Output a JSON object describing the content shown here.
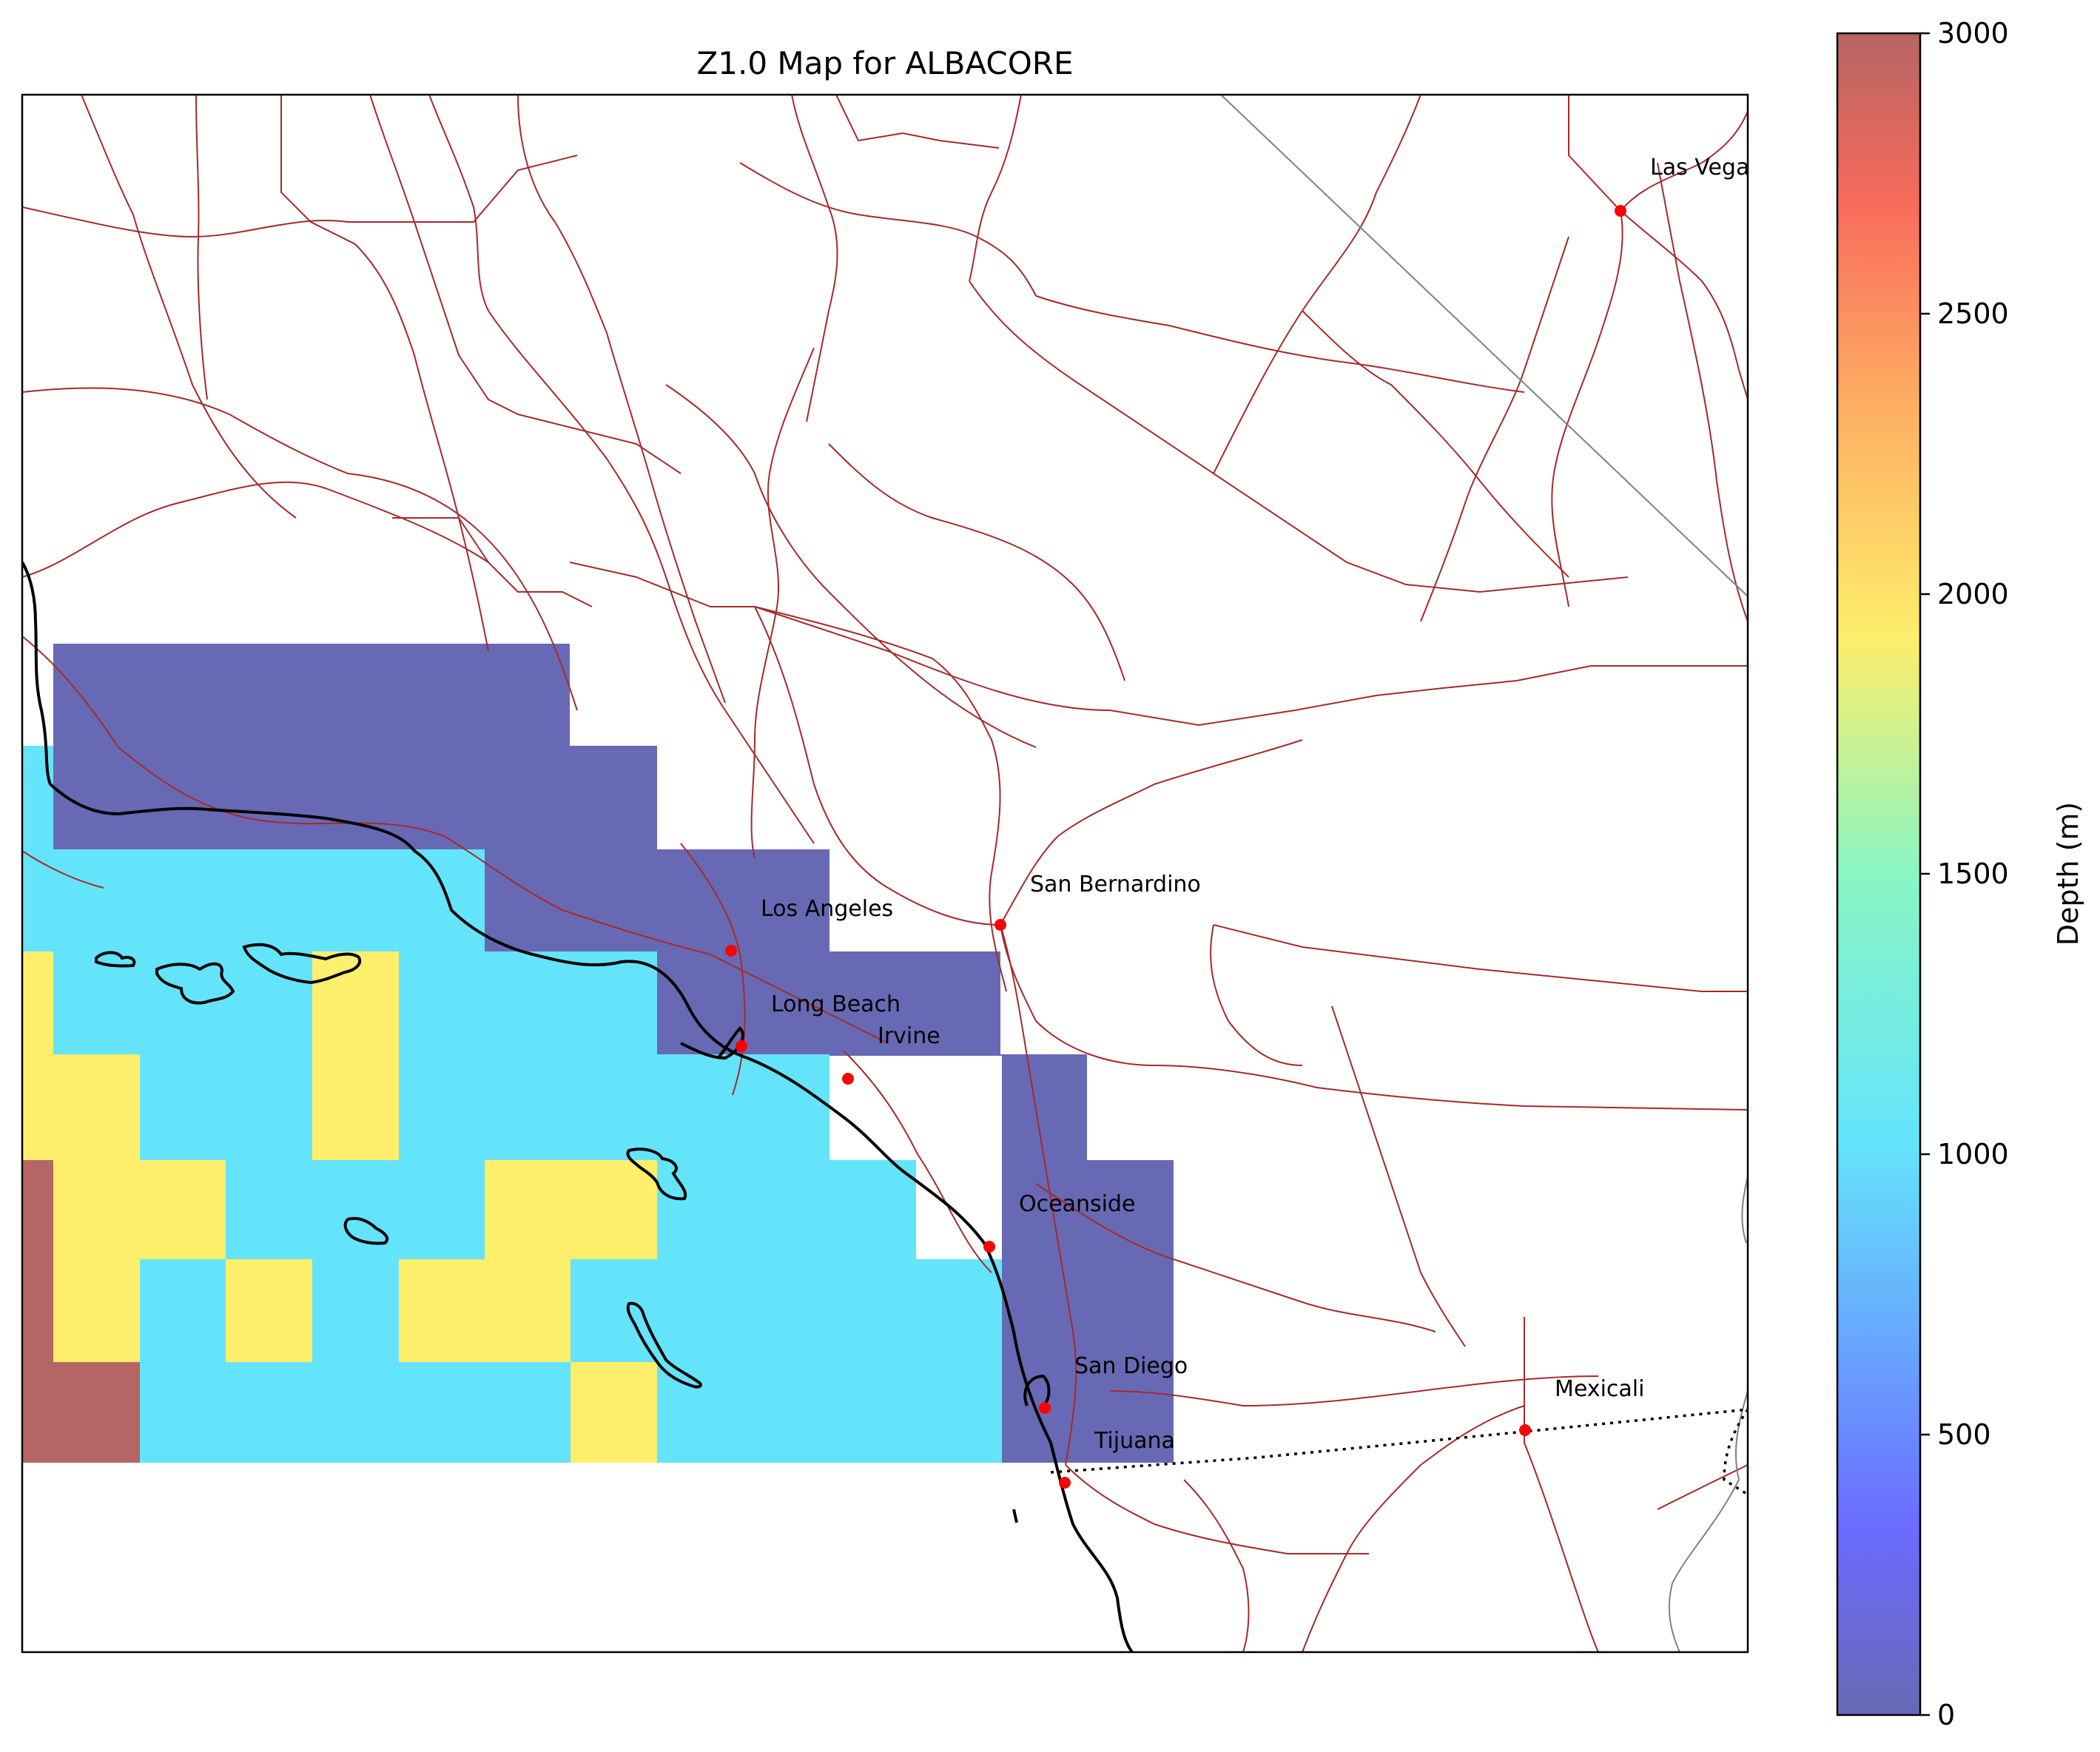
{
  "title": "Z1.0 Map for ALBACORE",
  "colors": {
    "depth_0_500": "#6869b4",
    "depth_1000": "#64e4fb",
    "depth_2000": "#fdee6b",
    "depth_3000": "#b56563",
    "road": "#a52a2a",
    "city_marker": "#ff0000"
  },
  "colorbar": {
    "label": "Depth (m)",
    "ticks": [
      "0",
      "500",
      "1000",
      "1500",
      "2000",
      "2500",
      "3000"
    ],
    "min": 0,
    "max": 3000,
    "colormap": "jet"
  },
  "cities": [
    {
      "name": "Las Vegas"
    },
    {
      "name": "San Bernardino"
    },
    {
      "name": "Los Angeles"
    },
    {
      "name": "Long Beach"
    },
    {
      "name": "Irvine"
    },
    {
      "name": "Oceanside"
    },
    {
      "name": "San Diego"
    },
    {
      "name": "Mexicali"
    },
    {
      "name": "Tijuana"
    }
  ]
}
